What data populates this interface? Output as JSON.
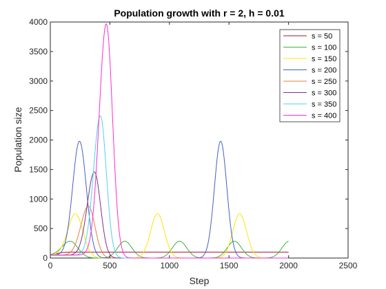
{
  "chart_data": {
    "type": "line",
    "title": "Population growth with r = 2, h = 0.01",
    "xlabel": "Step",
    "ylabel": "Population size",
    "xlim": [
      0,
      2500
    ],
    "ylim": [
      0,
      4000
    ],
    "xticks": [
      0,
      500,
      1000,
      1500,
      2000,
      2500
    ],
    "yticks": [
      0,
      500,
      1000,
      1500,
      2000,
      2500,
      3000,
      3500,
      4000
    ],
    "grid": false,
    "legend_position": "top-right",
    "x_range_plotted": [
      0,
      2000
    ],
    "start_value": 50,
    "series": [
      {
        "name": "s = 50",
        "color": "#a2142f",
        "kind": "constant",
        "level": 100
      },
      {
        "name": "s = 100",
        "color": "#3cb043",
        "kind": "periodic",
        "peak": 285,
        "period": 460,
        "first_peak": 165,
        "width": 60
      },
      {
        "name": "s = 150",
        "color": "#ffe30a",
        "kind": "periodic",
        "peak": 750,
        "period": 690,
        "first_peak": 210,
        "width": 58
      },
      {
        "name": "s = 200",
        "color": "#4160c2",
        "kind": "periodic",
        "peak": 1980,
        "period": 1185,
        "first_peak": 245,
        "width": 52
      },
      {
        "name": "s = 250",
        "color": "#ea7d3a",
        "kind": "single",
        "peak": 880,
        "peak_x": 320,
        "width": 55
      },
      {
        "name": "s = 300",
        "color": "#7e2f8e",
        "kind": "single",
        "peak": 1460,
        "peak_x": 370,
        "width": 52
      },
      {
        "name": "s = 350",
        "color": "#4dd2f0",
        "kind": "single",
        "peak": 2410,
        "peak_x": 420,
        "width": 50
      },
      {
        "name": "s = 400",
        "color": "#ff2bcf",
        "kind": "single",
        "peak": 3970,
        "peak_x": 470,
        "width": 52
      }
    ]
  }
}
